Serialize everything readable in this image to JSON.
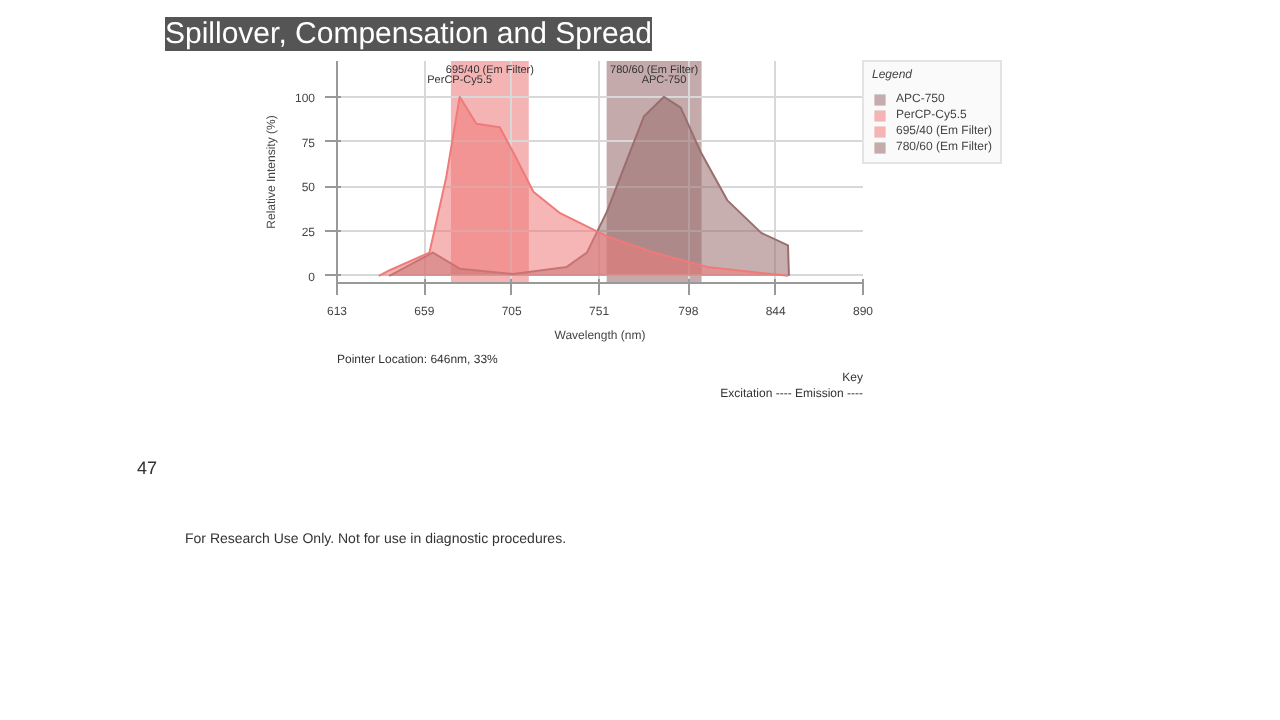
{
  "chart_data": {
    "type": "area",
    "title": "Spillover, Compensation and Spread",
    "xlabel": "Wavelength (nm)",
    "ylabel": "Relative Intensity (%)",
    "legend_title": "Legend",
    "xlim": [
      613,
      890
    ],
    "xticks": [
      613,
      659,
      705,
      751,
      798,
      844,
      890
    ],
    "ylim": [
      -4,
      120
    ],
    "yticks": [
      0,
      25,
      50,
      75,
      100
    ],
    "grid": true,
    "legend": "right",
    "series": [
      {
        "name": "APC-750",
        "color": "#9a6e6e",
        "x": [
          640.5,
          663.5,
          677.6,
          705.8,
          734,
          744.6,
          755.2,
          765.8,
          774.6,
          785.2,
          794,
          804.6,
          818.7,
          836.4,
          850.5,
          851
        ],
        "values": [
          0,
          13,
          4,
          1,
          5,
          13,
          36,
          65,
          89,
          100,
          94,
          69,
          42,
          24,
          17,
          0
        ]
      },
      {
        "name": "PerCP-Cy5.5",
        "color": "#f07a7a",
        "x": [
          635,
          640.5,
          661.7,
          670.5,
          677.6,
          686.4,
          698.7,
          705.8,
          716.4,
          730.5,
          755.2,
          779.9,
          808,
          850.5
        ],
        "values": [
          0,
          3,
          13,
          55,
          100,
          85,
          83,
          69,
          47,
          35,
          22,
          13,
          5,
          0
        ]
      }
    ],
    "bands": [
      {
        "axis": "x",
        "from": 673,
        "to": 714,
        "label": "695/40 (Em Filter)",
        "color": "#f4b4b4"
      },
      {
        "axis": "x",
        "from": 755,
        "to": 805,
        "label": "780/60 (Em Filter)",
        "color": "#c4aaaa"
      }
    ],
    "annotations": [
      {
        "text": "PerCP-Cy5.5",
        "x": 677.6,
        "y": 100
      },
      {
        "text": "APC-750",
        "x": 785.2,
        "y": 100
      },
      "Pointer Location: 646nm, 33%",
      "Key",
      "Excitation ---- Emission ----",
      "47",
      "For Research Use Only. Not for use in diagnostic procedures."
    ]
  }
}
